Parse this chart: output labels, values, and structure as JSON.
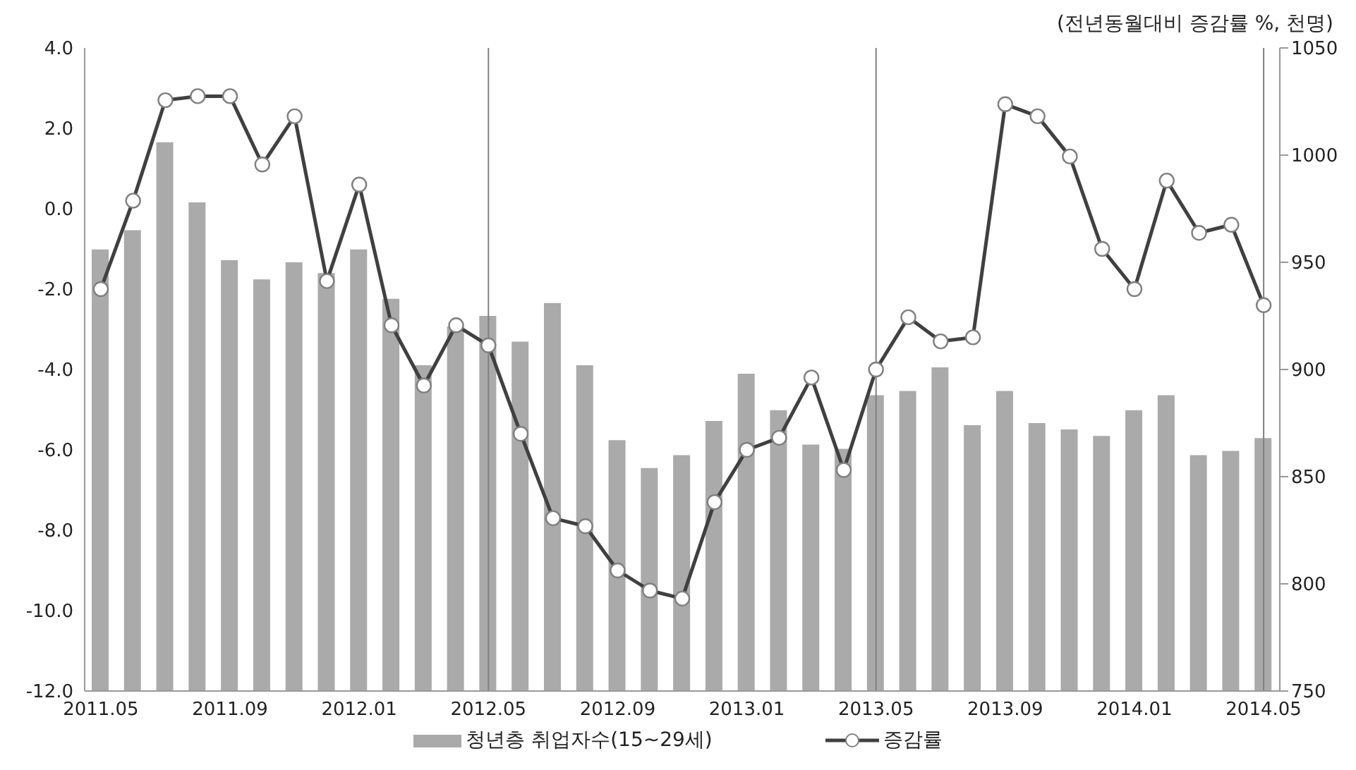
{
  "chart_data": {
    "type": "bar",
    "categories": [
      "2011.05",
      null,
      null,
      null,
      "2011.09",
      null,
      null,
      null,
      "2012.01",
      null,
      null,
      null,
      "2012.05",
      null,
      null,
      null,
      "2012.09",
      null,
      null,
      null,
      "2013.01",
      null,
      null,
      null,
      "2013.05",
      null,
      null,
      null,
      "2013.09",
      null,
      null,
      null,
      "2014.01",
      null,
      null,
      null,
      "2014.05"
    ],
    "series": [
      {
        "name": "청년층 취업자수(15~29세)",
        "axis": "y2",
        "color": "#aaaaaa",
        "values": [
          956,
          965,
          1006,
          978,
          951,
          942,
          950,
          945,
          956,
          933,
          902,
          920,
          925,
          913,
          931,
          902,
          867,
          854,
          860,
          876,
          898,
          881,
          865,
          863,
          888,
          890,
          901,
          874,
          890,
          875,
          872,
          869,
          881,
          888,
          860,
          862,
          868
        ]
      },
      {
        "name": "증감률",
        "type": "line",
        "axis": "y",
        "color": "#404040",
        "marker": "circle",
        "values": [
          -2.0,
          0.2,
          2.7,
          2.8,
          2.8,
          1.1,
          2.3,
          -1.8,
          0.6,
          -2.9,
          -4.4,
          -2.9,
          -3.4,
          -5.6,
          -7.7,
          -7.9,
          -9.0,
          -9.5,
          -9.7,
          -7.3,
          -6.0,
          -5.7,
          -4.2,
          -6.5,
          -4.0,
          -2.7,
          -3.3,
          -3.2,
          2.6,
          2.3,
          1.3,
          -1.0,
          -2.0,
          0.7,
          -0.6,
          -0.4,
          -2.4
        ]
      }
    ],
    "ylim": [
      -12,
      4
    ],
    "yticks": [
      {
        "value": -12,
        "label": "-12.0"
      },
      {
        "value": -10,
        "label": "-10.0"
      },
      {
        "value": -8,
        "label": "-8.0"
      },
      {
        "value": -6,
        "label": "-6.0"
      },
      {
        "value": -4,
        "label": "-4.0"
      },
      {
        "value": -2,
        "label": "-2.0"
      },
      {
        "value": 0,
        "label": "0.0"
      },
      {
        "value": 2,
        "label": "2.0"
      },
      {
        "value": 4,
        "label": "4.0"
      }
    ],
    "y2lim": [
      750,
      1050
    ],
    "y2ticks": [
      750,
      800,
      850,
      900,
      950,
      1000,
      1050
    ],
    "ref_lines": [
      {
        "axis": "x",
        "value": "2012.05",
        "color": "#808080"
      },
      {
        "axis": "x",
        "value": "2013.05",
        "color": "#808080"
      },
      {
        "axis": "x",
        "value": "2014.05",
        "color": "#808080"
      }
    ],
    "annotations": [
      "(전년동월대비 증감률 %, 천명)"
    ],
    "grid": false,
    "legend": "bottom"
  }
}
